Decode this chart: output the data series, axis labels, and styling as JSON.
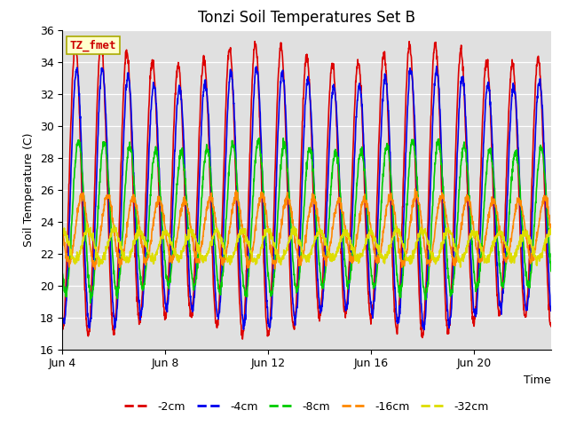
{
  "title": "Tonzi Soil Temperatures Set B",
  "ylabel": "Soil Temperature (C)",
  "xlabel": "Time",
  "ylim": [
    16,
    36
  ],
  "yticks": [
    16,
    18,
    20,
    22,
    24,
    26,
    28,
    30,
    32,
    34,
    36
  ],
  "xtick_labels": [
    "Jun 4",
    "Jun 8",
    "Jun 12",
    "Jun 16",
    "Jun 20"
  ],
  "xtick_positions": [
    0,
    4,
    8,
    12,
    16
  ],
  "annotation_label": "TZ_fmet",
  "annotation_color": "#cc0000",
  "annotation_bg": "#ffffcc",
  "annotation_border": "#aaaa00",
  "series": [
    {
      "label": "-2cm",
      "color": "#dd0000",
      "lw": 1.2,
      "mean": 26.0,
      "amp": 8.5,
      "lag": 0.0,
      "damp": 1.0
    },
    {
      "label": "-4cm",
      "color": "#0000ee",
      "lw": 1.2,
      "mean": 25.5,
      "amp": 7.5,
      "lag": 0.05,
      "damp": 0.95
    },
    {
      "label": "-8cm",
      "color": "#00cc00",
      "lw": 1.2,
      "mean": 24.2,
      "amp": 4.5,
      "lag": 0.12,
      "damp": 0.85
    },
    {
      "label": "-16cm",
      "color": "#ff8800",
      "lw": 1.2,
      "mean": 23.5,
      "amp": 2.0,
      "lag": 0.25,
      "damp": 0.7
    },
    {
      "label": "-32cm",
      "color": "#dddd00",
      "lw": 1.2,
      "mean": 22.5,
      "amp": 0.9,
      "lag": 0.5,
      "damp": 0.5
    }
  ],
  "n_days": 19,
  "samples_per_day": 96,
  "bg_color": "#e0e0e0",
  "fig_color": "#ffffff",
  "title_fontsize": 12,
  "label_fontsize": 9,
  "tick_fontsize": 9,
  "legend_fontsize": 9
}
